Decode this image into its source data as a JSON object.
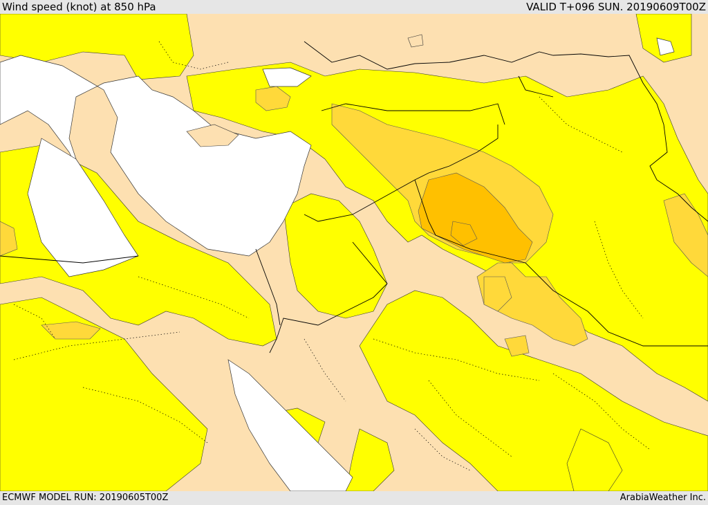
{
  "header": {
    "title": "Wind speed (knot) at 850 hPa",
    "valid": "VALID T+096 SUN. 20190609T00Z"
  },
  "footer": {
    "model_run": "ECMWF MODEL RUN: 20190605T00Z",
    "credit": "ArabiaWeather Inc."
  },
  "colors": {
    "background_land": "#fde0b1",
    "sea": "#ffffff",
    "band_low": "#ffff00",
    "band_mid": "#ffd93a",
    "band_high": "#ffc000",
    "header_bg": "#e6e6e6",
    "border_line": "#000000"
  }
}
